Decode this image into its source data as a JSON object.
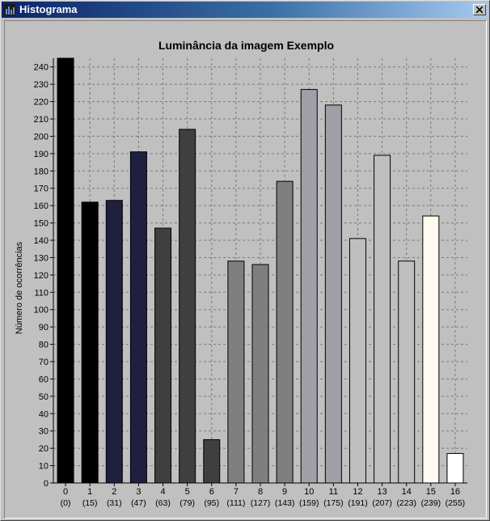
{
  "window": {
    "title": "Histograma",
    "close_glyph": "✕",
    "titlebar_colors": [
      "#0a246a",
      "#a6caf0"
    ]
  },
  "chart_data": {
    "type": "bar",
    "title": "Luminância da imagem Exemplo",
    "xlabel": "",
    "ylabel": "Número de ocorrências",
    "ylim": [
      0,
      245
    ],
    "yticks": [
      0,
      10,
      20,
      30,
      40,
      50,
      60,
      70,
      80,
      90,
      100,
      110,
      120,
      130,
      140,
      150,
      160,
      170,
      180,
      190,
      200,
      210,
      220,
      230,
      240
    ],
    "grid": true,
    "categories": [
      "0",
      "1",
      "2",
      "3",
      "4",
      "5",
      "6",
      "7",
      "8",
      "9",
      "10",
      "11",
      "12",
      "13",
      "14",
      "15",
      "16"
    ],
    "sublabels": [
      "(0)",
      "(15)",
      "(31)",
      "(47)",
      "(63)",
      "(79)",
      "(95)",
      "(111)",
      "(127)",
      "(143)",
      "(159)",
      "(175)",
      "(191)",
      "(207)",
      "(223)",
      "(239)",
      "(255)"
    ],
    "values": [
      245,
      162,
      163,
      191,
      147,
      204,
      25,
      128,
      126,
      174,
      227,
      218,
      141,
      189,
      128,
      154,
      17
    ],
    "colors": [
      "#000000",
      "#000000",
      "#1f1f3f",
      "#1f1f3f",
      "#3f3f3f",
      "#3f3f3f",
      "#3f3f3f",
      "#7f7f7f",
      "#7f7f7f",
      "#7f7f7f",
      "#9f9fa8",
      "#9f9fa8",
      "#bfbfbf",
      "#bfbfbf",
      "#bfbfbf",
      "#fffbf0",
      "#ffffff"
    ]
  }
}
